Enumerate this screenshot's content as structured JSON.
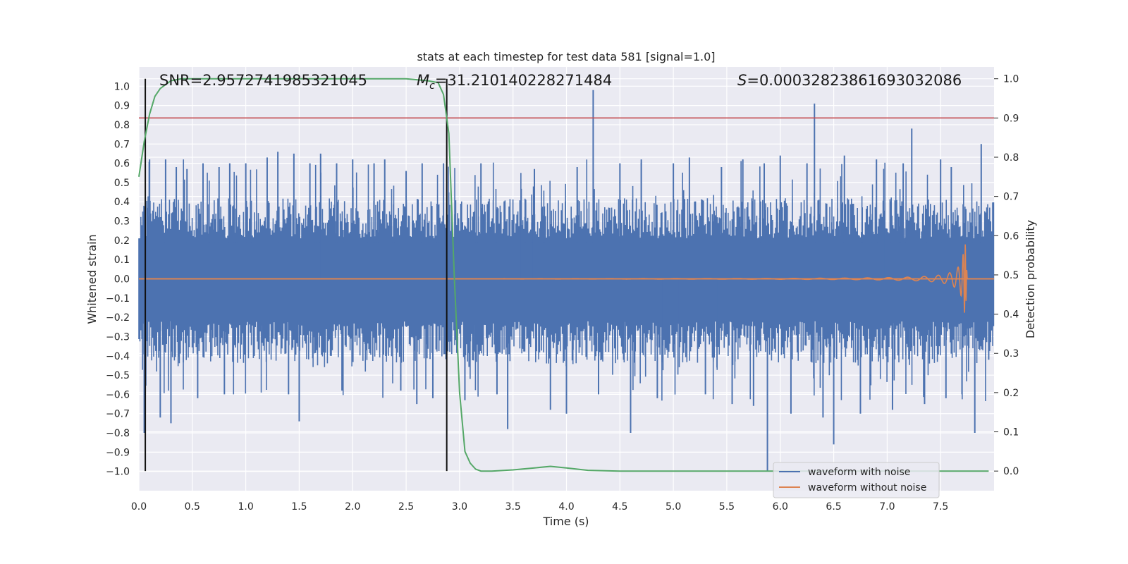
{
  "chart_data": {
    "type": "line",
    "title": "stats at each timestep for test data 581 [signal=1.0]",
    "xlabel": "Time (s)",
    "ylabel_left": "Whitened strain",
    "ylabel_right": "Detection probability",
    "xlim": [
      0.0,
      8.0
    ],
    "ylim_left": [
      -1.1,
      1.1
    ],
    "ylim_right": [
      -0.05,
      1.03
    ],
    "x_ticks": [
      0.0,
      0.5,
      1.0,
      1.5,
      2.0,
      2.5,
      3.0,
      3.5,
      4.0,
      4.5,
      5.0,
      5.5,
      6.0,
      6.5,
      7.0,
      7.5
    ],
    "x_tick_labels": [
      "0.0",
      "0.5",
      "1.0",
      "1.5",
      "2.0",
      "2.5",
      "3.0",
      "3.5",
      "4.0",
      "4.5",
      "5.0",
      "5.5",
      "6.0",
      "6.5",
      "7.0",
      "7.5"
    ],
    "y_left_ticks": [
      1.0,
      0.9,
      0.8,
      0.7,
      0.6,
      0.5,
      0.4,
      0.3,
      0.2,
      0.1,
      0.0,
      -0.1,
      -0.2,
      -0.3,
      -0.4,
      -0.5,
      -0.6,
      -0.7,
      -0.8,
      -0.9,
      -1.0
    ],
    "y_left_tick_labels": [
      "1.0",
      "0.9",
      "0.8",
      "0.7",
      "0.6",
      "0.5",
      "0.4",
      "0.3",
      "0.2",
      "0.1",
      "0.0",
      "−0.1",
      "−0.2",
      "−0.3",
      "−0.4",
      "−0.5",
      "−0.6",
      "−0.7",
      "−0.8",
      "−0.9",
      "−1.0"
    ],
    "y_right_ticks": [
      1.0,
      0.9,
      0.8,
      0.7,
      0.6,
      0.5,
      0.4,
      0.3,
      0.2,
      0.1,
      0.0
    ],
    "y_right_tick_labels": [
      "1.0",
      "0.9",
      "0.8",
      "0.7",
      "0.6",
      "0.5",
      "0.4",
      "0.3",
      "0.2",
      "0.1",
      "0.0"
    ],
    "annotations": {
      "snr": "SNR=2.9572741985321045",
      "mc_symbol": "M",
      "mc_subscript": "c",
      "mc_value": "=31.210140228271484",
      "s_symbol": "S",
      "s_value": "=0.00032823861693032086"
    },
    "threshold_line": {
      "axis": "right",
      "value": 0.9,
      "color": "#c44e52"
    },
    "vertical_markers": [
      0.06,
      2.88
    ],
    "noise_envelope": {
      "typical_top": 0.38,
      "typical_bottom": -0.4,
      "spikes": [
        [
          0.05,
          -0.8
        ],
        [
          0.1,
          0.62
        ],
        [
          0.2,
          -0.72
        ],
        [
          0.25,
          0.62
        ],
        [
          0.3,
          -0.75
        ],
        [
          0.35,
          0.58
        ],
        [
          0.45,
          0.57
        ],
        [
          0.55,
          -0.62
        ],
        [
          0.6,
          0.6
        ],
        [
          0.75,
          0.58
        ],
        [
          0.8,
          -0.6
        ],
        [
          0.85,
          0.6
        ],
        [
          1.0,
          0.6
        ],
        [
          1.2,
          0.63
        ],
        [
          1.3,
          0.66
        ],
        [
          1.4,
          -0.6
        ],
        [
          1.45,
          0.65
        ],
        [
          1.5,
          -0.74
        ],
        [
          1.6,
          0.6
        ],
        [
          1.7,
          0.65
        ],
        [
          1.85,
          0.6
        ],
        [
          1.9,
          -0.58
        ],
        [
          2.0,
          0.62
        ],
        [
          2.2,
          0.6
        ],
        [
          2.3,
          0.62
        ],
        [
          2.45,
          -0.58
        ],
        [
          2.5,
          0.56
        ],
        [
          2.6,
          -0.65
        ],
        [
          2.65,
          0.6
        ],
        [
          2.75,
          -0.62
        ],
        [
          2.85,
          0.6
        ],
        [
          3.05,
          -0.63
        ],
        [
          3.2,
          0.6
        ],
        [
          3.35,
          -0.6
        ],
        [
          3.45,
          -0.78
        ],
        [
          3.7,
          0.57
        ],
        [
          3.85,
          -0.68
        ],
        [
          4.0,
          -0.7
        ],
        [
          4.1,
          0.58
        ],
        [
          4.25,
          0.98
        ],
        [
          4.3,
          -0.6
        ],
        [
          4.5,
          0.6
        ],
        [
          4.6,
          -0.8
        ],
        [
          4.7,
          0.62
        ],
        [
          4.85,
          -0.62
        ],
        [
          5.0,
          0.6
        ],
        [
          5.15,
          0.63
        ],
        [
          5.3,
          -0.6
        ],
        [
          5.45,
          0.58
        ],
        [
          5.55,
          -0.65
        ],
        [
          5.65,
          0.62
        ],
        [
          5.75,
          -0.66
        ],
        [
          5.85,
          0.6
        ],
        [
          5.88,
          -1.0
        ],
        [
          6.0,
          0.64
        ],
        [
          6.1,
          -0.7
        ],
        [
          6.25,
          0.6
        ],
        [
          6.32,
          0.91
        ],
        [
          6.4,
          -0.72
        ],
        [
          6.5,
          -0.86
        ],
        [
          6.6,
          0.64
        ],
        [
          6.75,
          -0.7
        ],
        [
          6.9,
          0.62
        ],
        [
          7.05,
          -0.68
        ],
        [
          7.15,
          0.6
        ],
        [
          7.23,
          0.78
        ],
        [
          7.35,
          -0.65
        ],
        [
          7.5,
          0.62
        ],
        [
          7.55,
          -0.62
        ],
        [
          7.6,
          0.58
        ],
        [
          7.7,
          -0.6
        ],
        [
          7.82,
          -0.8
        ],
        [
          7.88,
          0.7
        ],
        [
          7.95,
          -0.42
        ]
      ]
    },
    "series": [
      {
        "name": "waveform with noise",
        "color": "#4c72b0",
        "axis": "left",
        "description": "whitened strain with noise (dense)"
      },
      {
        "name": "waveform without noise",
        "color": "#dd8452",
        "axis": "left",
        "chirp_peak_time": 7.73,
        "chirp_peak_amplitude": 0.22
      },
      {
        "name": "detection probability",
        "color": "#55a868",
        "axis": "right",
        "x": [
          0.0,
          0.05,
          0.1,
          0.15,
          0.2,
          0.3,
          0.4,
          0.5,
          1.0,
          1.5,
          2.0,
          2.5,
          2.7,
          2.8,
          2.85,
          2.9,
          2.95,
          3.0,
          3.05,
          3.1,
          3.15,
          3.2,
          3.3,
          3.5,
          3.7,
          3.85,
          4.0,
          4.2,
          4.5,
          5.0,
          6.0,
          7.0,
          7.95
        ],
        "y": [
          0.75,
          0.84,
          0.91,
          0.955,
          0.975,
          0.995,
          1.0,
          1.0,
          1.0,
          1.0,
          1.0,
          1.0,
          0.995,
          0.99,
          0.96,
          0.86,
          0.5,
          0.2,
          0.05,
          0.02,
          0.005,
          0.0,
          0.0,
          0.003,
          0.008,
          0.012,
          0.008,
          0.002,
          0.0,
          0.0,
          0.0,
          0.0,
          0.0
        ]
      }
    ],
    "legend": {
      "placement": "lower-right",
      "entries": [
        {
          "label": "waveform with noise",
          "color": "#4c72b0"
        },
        {
          "label": "waveform without noise",
          "color": "#dd8452"
        }
      ]
    }
  }
}
